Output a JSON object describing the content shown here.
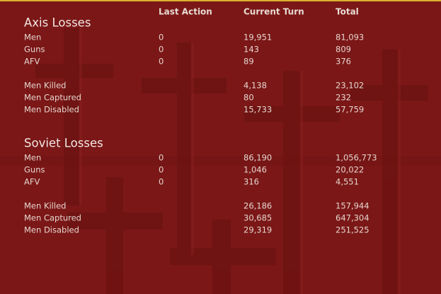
{
  "header": {
    "columns": [
      "Last Action",
      "Current Turn",
      "Total"
    ]
  },
  "sections": [
    {
      "title": "Axis Losses",
      "groups": [
        [
          [
            "Men",
            "0",
            "19,951",
            "81,093"
          ],
          [
            "Guns",
            "0",
            "143",
            "809"
          ],
          [
            "AFV",
            "0",
            "89",
            "376"
          ]
        ],
        [
          [
            "Men Killed",
            "4,138",
            "23,102"
          ],
          [
            "Men Captured",
            "80",
            "232"
          ],
          [
            "Men Disabled",
            "15,733",
            "57,759"
          ]
        ]
      ]
    },
    {
      "title": "Soviet Losses",
      "groups": [
        [
          [
            "Men",
            "0",
            "86,190",
            "1,056,773"
          ],
          [
            "Guns",
            "0",
            "1,046",
            "20,022"
          ],
          [
            "AFV",
            "0",
            "316",
            "4,551"
          ]
        ],
        [
          [
            "Men Killed",
            "26,186",
            "157,944"
          ],
          [
            "Men Captured",
            "30,685",
            "647,304"
          ],
          [
            "Men Disabled",
            "29,319",
            "251,525"
          ]
        ]
      ]
    }
  ]
}
